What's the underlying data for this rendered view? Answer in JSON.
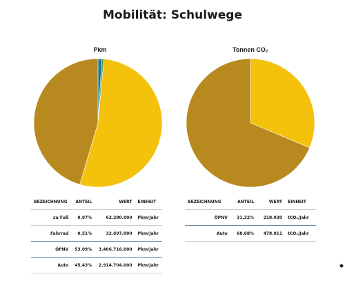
{
  "page": {
    "title": "Mobilität: Schulwege"
  },
  "colors": {
    "auto": "#B8891F",
    "oepnv": "#F4C20D",
    "fahrrad": "#3E9E5C",
    "fuss": "#1F6F8B",
    "separator": "#6D87A6"
  },
  "chart_data": [
    {
      "type": "pie",
      "title": "Pkm",
      "categories": [
        "zu Fuß",
        "Fahrrad",
        "ÖPNV",
        "Auto"
      ],
      "values": [
        0.97,
        0.51,
        53.09,
        45.43
      ],
      "table": {
        "headers": [
          "BEZEICHNUNG",
          "ANTEIL",
          "WERT",
          "EINHEIT"
        ],
        "rows": [
          [
            "zu Fuß",
            "0,97%",
            "62.280.000",
            "Pkm/Jahr"
          ],
          [
            "Fahrrad",
            "0,51%",
            "32.697.000",
            "Pkm/Jahr"
          ],
          [
            "ÖPNV",
            "53,09%",
            "3.406.716.000",
            "Pkm/Jahr"
          ],
          [
            "Auto",
            "45,43%",
            "2.914.704.000",
            "Pkm/Jahr"
          ]
        ]
      }
    },
    {
      "type": "pie",
      "title": "Tonnen CO₂",
      "categories": [
        "ÖPNV",
        "Auto"
      ],
      "values": [
        31.32,
        68.68
      ],
      "table": {
        "headers": [
          "BEZEICHNUNG",
          "ANTEIL",
          "WERT",
          "EINHEIT"
        ],
        "rows": [
          [
            "ÖPNV",
            "31,32%",
            "218.030",
            "tCO₂/Jahr"
          ],
          [
            "Auto",
            "68,68%",
            "478.011",
            "tCO₂/Jahr"
          ]
        ]
      }
    }
  ]
}
